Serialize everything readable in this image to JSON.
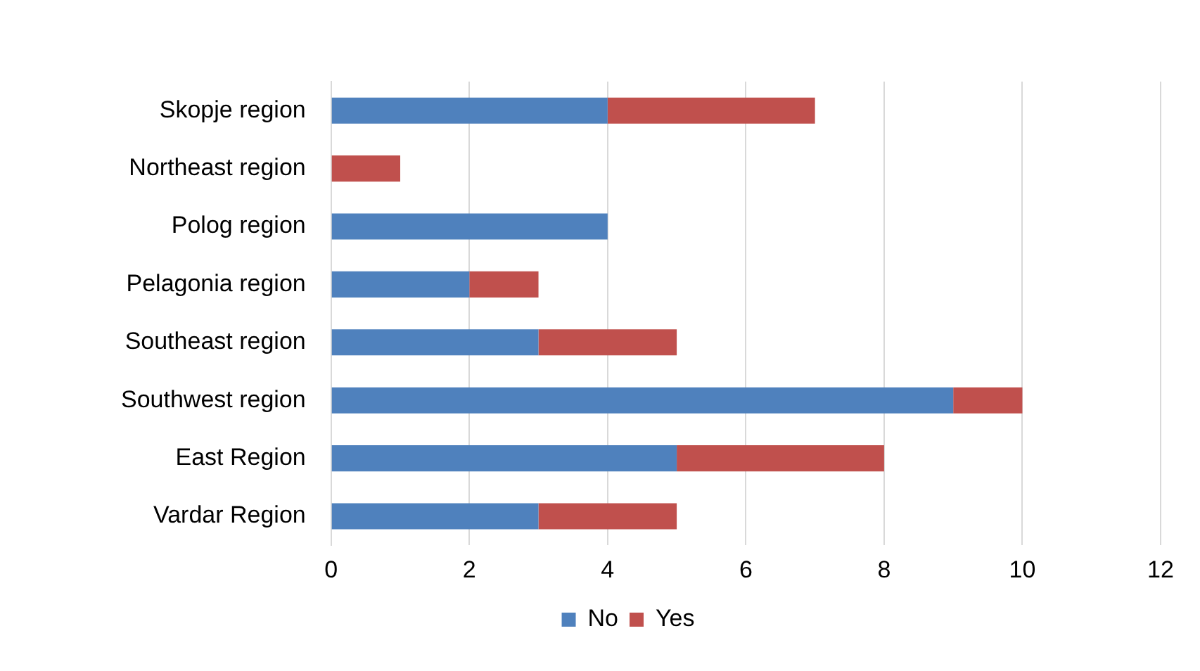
{
  "chart_data": {
    "type": "bar",
    "orientation": "horizontal",
    "stacked": true,
    "categories": [
      "Skopje region",
      "Northeast region",
      "Polog region",
      "Pelagonia region",
      "Southeast region",
      "Southwest region",
      "East Region",
      "Vardar Region"
    ],
    "series": [
      {
        "name": "No",
        "color": "#4f81bd",
        "values": [
          4,
          0,
          4,
          2,
          3,
          9,
          5,
          3
        ]
      },
      {
        "name": "Yes",
        "color": "#c0504d",
        "values": [
          3,
          1,
          0,
          1,
          2,
          1,
          3,
          2
        ]
      }
    ],
    "xlim": [
      0,
      12
    ],
    "xticks": [
      0,
      2,
      4,
      6,
      8,
      10,
      12
    ],
    "grid": "x",
    "legend": "bottom"
  }
}
